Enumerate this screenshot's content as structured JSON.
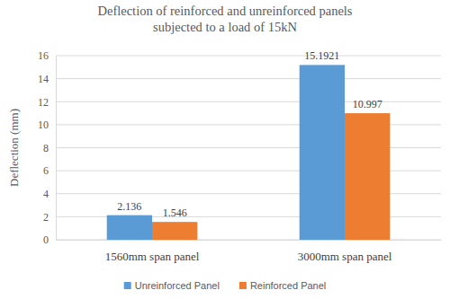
{
  "chart_data": {
    "type": "bar",
    "title": "Deflection of reinforced and unreinforced panels\nsubjected to a load of 15kN",
    "y_label": "Deflection (mm)",
    "categories": [
      "1560mm span panel",
      "3000mm span panel"
    ],
    "series": [
      {
        "name": "Unreinforced Panel",
        "color": "#5b9bd5",
        "values": [
          2.136,
          15.1921
        ]
      },
      {
        "name": "Reinforced Panel",
        "color": "#ed7d31",
        "values": [
          1.546,
          10.997
        ]
      }
    ],
    "ylim": [
      0,
      16
    ],
    "yticks": [
      0,
      2,
      4,
      6,
      8,
      10,
      12,
      14,
      16
    ],
    "grid": true,
    "legend": "bottom",
    "data_labels": true
  }
}
